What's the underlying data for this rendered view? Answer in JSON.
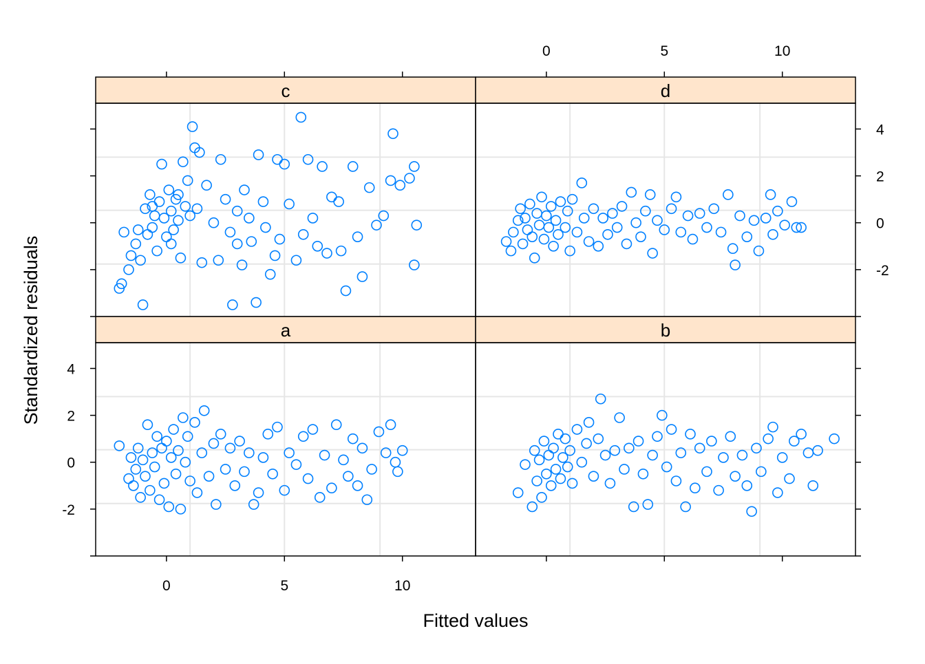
{
  "chart_data": {
    "type": "scatter",
    "xlabel": "Fitted values",
    "ylabel": "Standardized residuals",
    "xlim": [
      -3.0,
      13.1
    ],
    "ylim": [
      -4.0,
      5.1
    ],
    "x_ticks": [
      0,
      5,
      10
    ],
    "y_ticks": [
      -2,
      0,
      2,
      4
    ],
    "grid": {
      "x": [
        1.0,
        5.0,
        9.05
      ],
      "y": [
        2.8,
        0.53,
        -1.76
      ]
    },
    "colors": {
      "point": "#0080ff",
      "strip": "#ffe5cc",
      "grid": "#e6e6e6"
    },
    "panels": [
      {
        "name": "c",
        "points": [
          [
            -2,
            -2.8
          ],
          [
            -1.9,
            -2.6
          ],
          [
            -1.8,
            -0.4
          ],
          [
            -1.6,
            -2
          ],
          [
            -1.5,
            -1.4
          ],
          [
            -1.3,
            -0.9
          ],
          [
            -1.1,
            -1.6
          ],
          [
            -1,
            -3.5
          ],
          [
            -0.9,
            0.6
          ],
          [
            -0.8,
            -0.5
          ],
          [
            -0.7,
            1.2
          ],
          [
            -0.6,
            -0.2
          ],
          [
            -0.5,
            0.3
          ],
          [
            -0.4,
            -1.2
          ],
          [
            -0.3,
            0.9
          ],
          [
            -0.2,
            2.5
          ],
          [
            -0.1,
            0.2
          ],
          [
            0,
            -0.6
          ],
          [
            0.1,
            1.4
          ],
          [
            0.2,
            0.5
          ],
          [
            0.3,
            -0.3
          ],
          [
            0.4,
            1.0
          ],
          [
            0.5,
            0.1
          ],
          [
            0.6,
            -1.5
          ],
          [
            0.7,
            2.6
          ],
          [
            0.8,
            0.7
          ],
          [
            0.9,
            1.8
          ],
          [
            1,
            0.3
          ],
          [
            1.1,
            4.1
          ],
          [
            1.2,
            3.2
          ],
          [
            1.4,
            3.0
          ],
          [
            1.5,
            -1.7
          ],
          [
            1.7,
            1.6
          ],
          [
            2,
            0.0
          ],
          [
            2.2,
            -1.6
          ],
          [
            2.3,
            2.7
          ],
          [
            2.5,
            1.0
          ],
          [
            2.8,
            -3.5
          ],
          [
            3,
            0.5
          ],
          [
            3.2,
            -1.8
          ],
          [
            3.3,
            1.4
          ],
          [
            3.6,
            -0.8
          ],
          [
            3.8,
            -3.4
          ],
          [
            3.9,
            2.9
          ],
          [
            4.1,
            0.9
          ],
          [
            4.4,
            -2.2
          ],
          [
            4.6,
            -1.4
          ],
          [
            4.7,
            2.7
          ],
          [
            5,
            2.5
          ],
          [
            5.2,
            0.8
          ],
          [
            5.5,
            -1.6
          ],
          [
            5.7,
            4.5
          ],
          [
            6,
            2.7
          ],
          [
            6.2,
            0.2
          ],
          [
            6.4,
            -1.0
          ],
          [
            6.6,
            2.4
          ],
          [
            7,
            1.1
          ],
          [
            7.4,
            -1.2
          ],
          [
            7.6,
            -2.9
          ],
          [
            7.9,
            2.4
          ],
          [
            8.3,
            -2.3
          ],
          [
            8.6,
            1.5
          ],
          [
            8.9,
            -0.1
          ],
          [
            9.2,
            0.3
          ],
          [
            9.5,
            1.8
          ],
          [
            9.6,
            3.8
          ],
          [
            9.9,
            1.6
          ],
          [
            10.3,
            1.9
          ],
          [
            10.5,
            -1.8
          ],
          [
            10.6,
            -0.1
          ],
          [
            10.5,
            2.4
          ],
          [
            5.8,
            -0.5
          ],
          [
            6.8,
            -1.3
          ],
          [
            4.2,
            -0.2
          ],
          [
            3.0,
            -0.9
          ],
          [
            7.3,
            0.9
          ],
          [
            8.1,
            -0.6
          ],
          [
            -0.6,
            0.7
          ],
          [
            0.2,
            -0.9
          ],
          [
            0.5,
            1.2
          ],
          [
            -1.2,
            -0.3
          ],
          [
            1.3,
            0.6
          ],
          [
            2.7,
            -0.4
          ],
          [
            3.5,
            0.2
          ],
          [
            4.8,
            -0.7
          ]
        ]
      },
      {
        "name": "d",
        "points": [
          [
            -1.7,
            -0.8
          ],
          [
            -1.5,
            -1.2
          ],
          [
            -1.4,
            -0.4
          ],
          [
            -1.2,
            0.1
          ],
          [
            -1.1,
            0.6
          ],
          [
            -1,
            -0.9
          ],
          [
            -0.9,
            0.2
          ],
          [
            -0.8,
            -0.3
          ],
          [
            -0.7,
            0.8
          ],
          [
            -0.6,
            -0.6
          ],
          [
            -0.5,
            -1.5
          ],
          [
            -0.4,
            0.4
          ],
          [
            -0.3,
            -0.1
          ],
          [
            -0.2,
            1.1
          ],
          [
            -0.1,
            -0.7
          ],
          [
            0,
            0.3
          ],
          [
            0.1,
            -0.2
          ],
          [
            0.2,
            0.7
          ],
          [
            0.3,
            -1.0
          ],
          [
            0.4,
            0.1
          ],
          [
            0.5,
            -0.5
          ],
          [
            0.6,
            0.9
          ],
          [
            0.8,
            -0.2
          ],
          [
            0.9,
            0.5
          ],
          [
            1,
            -1.2
          ],
          [
            1.1,
            1.0
          ],
          [
            1.3,
            -0.4
          ],
          [
            1.5,
            1.7
          ],
          [
            1.6,
            0.2
          ],
          [
            1.8,
            -0.8
          ],
          [
            2,
            0.6
          ],
          [
            2.2,
            -1.0
          ],
          [
            2.4,
            0.2
          ],
          [
            2.6,
            -0.5
          ],
          [
            2.8,
            0.4
          ],
          [
            3,
            -0.2
          ],
          [
            3.2,
            0.7
          ],
          [
            3.4,
            -0.9
          ],
          [
            3.6,
            1.3
          ],
          [
            3.8,
            0.0
          ],
          [
            4,
            -0.6
          ],
          [
            4.2,
            0.5
          ],
          [
            4.4,
            1.2
          ],
          [
            4.5,
            -1.3
          ],
          [
            4.7,
            0.1
          ],
          [
            5,
            -0.3
          ],
          [
            5.3,
            0.6
          ],
          [
            5.5,
            1.1
          ],
          [
            5.7,
            -0.4
          ],
          [
            6,
            0.3
          ],
          [
            6.2,
            -0.7
          ],
          [
            6.5,
            0.4
          ],
          [
            6.8,
            -0.2
          ],
          [
            7.1,
            0.6
          ],
          [
            7.4,
            -0.4
          ],
          [
            7.7,
            1.2
          ],
          [
            7.9,
            -1.1
          ],
          [
            8,
            -1.8
          ],
          [
            8.2,
            0.3
          ],
          [
            8.5,
            -0.6
          ],
          [
            8.8,
            0.1
          ],
          [
            9,
            -1.2
          ],
          [
            9.3,
            0.2
          ],
          [
            9.5,
            1.2
          ],
          [
            9.6,
            -0.5
          ],
          [
            9.8,
            0.5
          ],
          [
            10.1,
            -0.1
          ],
          [
            10.4,
            0.9
          ],
          [
            10.6,
            -0.2
          ],
          [
            10.8,
            -0.2
          ]
        ]
      },
      {
        "name": "a",
        "points": [
          [
            -2,
            0.7
          ],
          [
            -1.6,
            -0.7
          ],
          [
            -1.5,
            0.2
          ],
          [
            -1.4,
            -1.0
          ],
          [
            -1.3,
            -0.3
          ],
          [
            -1.2,
            0.6
          ],
          [
            -1.1,
            -1.5
          ],
          [
            -1,
            0.1
          ],
          [
            -0.9,
            -0.6
          ],
          [
            -0.8,
            1.6
          ],
          [
            -0.7,
            -1.2
          ],
          [
            -0.6,
            0.4
          ],
          [
            -0.5,
            -0.2
          ],
          [
            -0.4,
            1.1
          ],
          [
            -0.3,
            -1.6
          ],
          [
            -0.2,
            0.6
          ],
          [
            -0.1,
            -0.9
          ],
          [
            0,
            0.9
          ],
          [
            0.1,
            -1.9
          ],
          [
            0.2,
            0.2
          ],
          [
            0.3,
            1.4
          ],
          [
            0.4,
            -0.5
          ],
          [
            0.5,
            0.5
          ],
          [
            0.6,
            -2.0
          ],
          [
            0.7,
            1.9
          ],
          [
            0.8,
            0.0
          ],
          [
            0.9,
            1.1
          ],
          [
            1,
            -0.8
          ],
          [
            1.2,
            1.7
          ],
          [
            1.3,
            -1.3
          ],
          [
            1.5,
            0.4
          ],
          [
            1.6,
            2.2
          ],
          [
            1.8,
            -0.6
          ],
          [
            2,
            0.8
          ],
          [
            2.1,
            -1.8
          ],
          [
            2.3,
            1.2
          ],
          [
            2.5,
            -0.3
          ],
          [
            2.7,
            0.6
          ],
          [
            2.9,
            -1.0
          ],
          [
            3.1,
            0.9
          ],
          [
            3.3,
            -0.4
          ],
          [
            3.5,
            0.4
          ],
          [
            3.7,
            -1.8
          ],
          [
            3.9,
            -1.3
          ],
          [
            4.1,
            0.2
          ],
          [
            4.3,
            1.2
          ],
          [
            4.5,
            -0.5
          ],
          [
            4.7,
            1.5
          ],
          [
            5,
            -1.2
          ],
          [
            5.2,
            0.4
          ],
          [
            5.5,
            -0.1
          ],
          [
            5.8,
            1.1
          ],
          [
            6,
            -0.7
          ],
          [
            6.2,
            1.4
          ],
          [
            6.5,
            -1.5
          ],
          [
            6.7,
            0.3
          ],
          [
            7,
            -1.1
          ],
          [
            7.2,
            1.6
          ],
          [
            7.5,
            0.1
          ],
          [
            7.7,
            -0.6
          ],
          [
            7.9,
            1.0
          ],
          [
            8.1,
            -1.0
          ],
          [
            8.3,
            0.6
          ],
          [
            8.5,
            -1.6
          ],
          [
            8.7,
            -0.3
          ],
          [
            9,
            1.3
          ],
          [
            9.3,
            0.4
          ],
          [
            9.5,
            1.6
          ],
          [
            9.7,
            0.0
          ],
          [
            9.8,
            -0.4
          ],
          [
            10,
            0.5
          ]
        ]
      },
      {
        "name": "b",
        "points": [
          [
            -1.2,
            -1.3
          ],
          [
            -0.9,
            -0.1
          ],
          [
            -0.6,
            -1.9
          ],
          [
            -0.5,
            0.5
          ],
          [
            -0.4,
            -0.8
          ],
          [
            -0.3,
            0.1
          ],
          [
            -0.2,
            -1.5
          ],
          [
            -0.1,
            0.9
          ],
          [
            0,
            -0.5
          ],
          [
            0.1,
            0.3
          ],
          [
            0.2,
            -1.0
          ],
          [
            0.3,
            0.6
          ],
          [
            0.4,
            -0.3
          ],
          [
            0.5,
            1.2
          ],
          [
            0.6,
            -0.7
          ],
          [
            0.7,
            0.2
          ],
          [
            0.8,
            1.0
          ],
          [
            0.9,
            -0.2
          ],
          [
            1,
            0.5
          ],
          [
            1.1,
            -0.9
          ],
          [
            1.3,
            1.4
          ],
          [
            1.5,
            0.0
          ],
          [
            1.7,
            0.8
          ],
          [
            1.8,
            1.7
          ],
          [
            2,
            -0.6
          ],
          [
            2.2,
            1.0
          ],
          [
            2.3,
            2.7
          ],
          [
            2.5,
            0.3
          ],
          [
            2.7,
            -0.9
          ],
          [
            2.9,
            0.5
          ],
          [
            3.1,
            1.9
          ],
          [
            3.3,
            -0.3
          ],
          [
            3.5,
            0.6
          ],
          [
            3.7,
            -1.9
          ],
          [
            3.9,
            0.9
          ],
          [
            4.1,
            -0.5
          ],
          [
            4.3,
            -1.8
          ],
          [
            4.5,
            0.3
          ],
          [
            4.7,
            1.1
          ],
          [
            4.9,
            2.0
          ],
          [
            5.1,
            -0.2
          ],
          [
            5.3,
            1.4
          ],
          [
            5.5,
            -0.8
          ],
          [
            5.7,
            0.4
          ],
          [
            5.9,
            -1.9
          ],
          [
            6.1,
            1.2
          ],
          [
            6.3,
            -1.1
          ],
          [
            6.5,
            0.6
          ],
          [
            6.8,
            -0.4
          ],
          [
            7,
            0.9
          ],
          [
            7.3,
            -1.2
          ],
          [
            7.5,
            0.2
          ],
          [
            7.8,
            1.1
          ],
          [
            8,
            -0.6
          ],
          [
            8.3,
            0.3
          ],
          [
            8.5,
            -1.0
          ],
          [
            8.7,
            -2.1
          ],
          [
            8.9,
            0.6
          ],
          [
            9.1,
            -0.4
          ],
          [
            9.4,
            1.0
          ],
          [
            9.6,
            1.5
          ],
          [
            9.8,
            -1.3
          ],
          [
            10,
            0.2
          ],
          [
            10.3,
            -0.7
          ],
          [
            10.5,
            0.9
          ],
          [
            10.8,
            1.2
          ],
          [
            11.1,
            0.4
          ],
          [
            11.3,
            -1.0
          ],
          [
            11.5,
            0.5
          ],
          [
            12.2,
            1.0
          ]
        ]
      }
    ]
  }
}
